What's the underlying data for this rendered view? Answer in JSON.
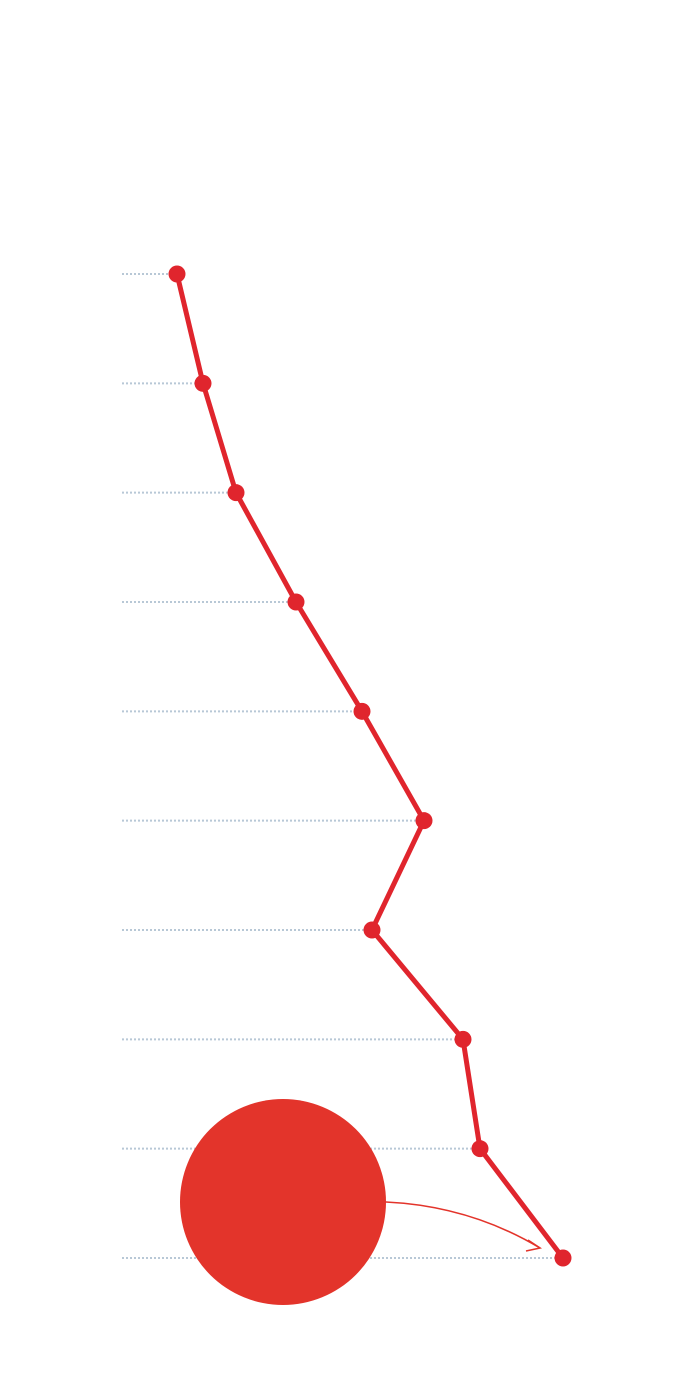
{
  "chart_data": {
    "type": "line",
    "orientation": "horizontal",
    "categories": [
      null,
      null,
      null,
      null,
      null,
      null,
      null,
      null,
      null,
      null
    ],
    "series": [
      {
        "color": "#e0252d",
        "values": [
          55,
          81,
          114,
          174,
          240,
          302,
          250,
          341,
          358,
          441
        ]
      }
    ],
    "xlim": [
      0,
      500
    ],
    "leader_lines": true
  }
}
